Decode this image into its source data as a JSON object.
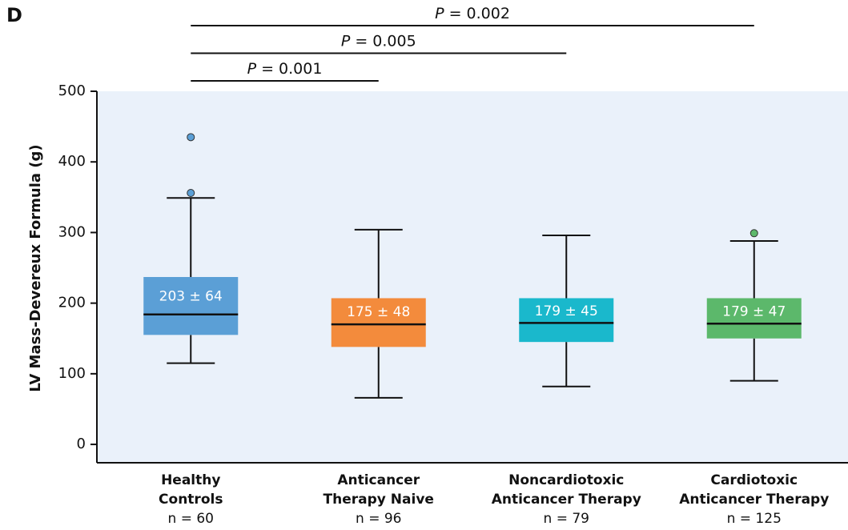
{
  "panel_label": "D",
  "chart_data": {
    "type": "box",
    "y_label": "LV Mass-Devereux Formula (g)",
    "ylim": [
      -26,
      500
    ],
    "yticks": [
      0,
      100,
      200,
      300,
      400,
      500
    ],
    "background": "#eaf1fa",
    "categories": [
      [
        "Healthy",
        "Controls"
      ],
      [
        "Anticancer",
        "Therapy Naive"
      ],
      [
        "Noncardiotoxic",
        "Anticancer Therapy"
      ],
      [
        "Cardiotoxic",
        "Anticancer Therapy"
      ]
    ],
    "sample_sizes": [
      "n = 60",
      "n = 96",
      "n = 79",
      "n = 125"
    ],
    "series": [
      {
        "color": "#5b9fd6",
        "low": 115,
        "q1": 155,
        "median": 184,
        "q3": 237,
        "high": 349,
        "outliers": [
          435,
          356
        ],
        "label": "203 ± 64"
      },
      {
        "color": "#f38b3c",
        "low": 66,
        "q1": 138,
        "median": 170,
        "q3": 207,
        "high": 304,
        "outliers": [],
        "label": "175 ± 48"
      },
      {
        "color": "#1ab8cc",
        "low": 82,
        "q1": 145,
        "median": 172,
        "q3": 207,
        "high": 296,
        "outliers": [],
        "label": "179 ± 45"
      },
      {
        "color": "#5cb86b",
        "low": 90,
        "q1": 150,
        "median": 171,
        "q3": 207,
        "high": 288,
        "outliers": [
          299
        ],
        "label": "179 ± 47"
      }
    ],
    "comparisons": [
      {
        "from": 0,
        "to": 3,
        "label": "P = 0.002"
      },
      {
        "from": 0,
        "to": 2,
        "label": "P = 0.005"
      },
      {
        "from": 0,
        "to": 1,
        "label": "P = 0.001"
      }
    ]
  }
}
